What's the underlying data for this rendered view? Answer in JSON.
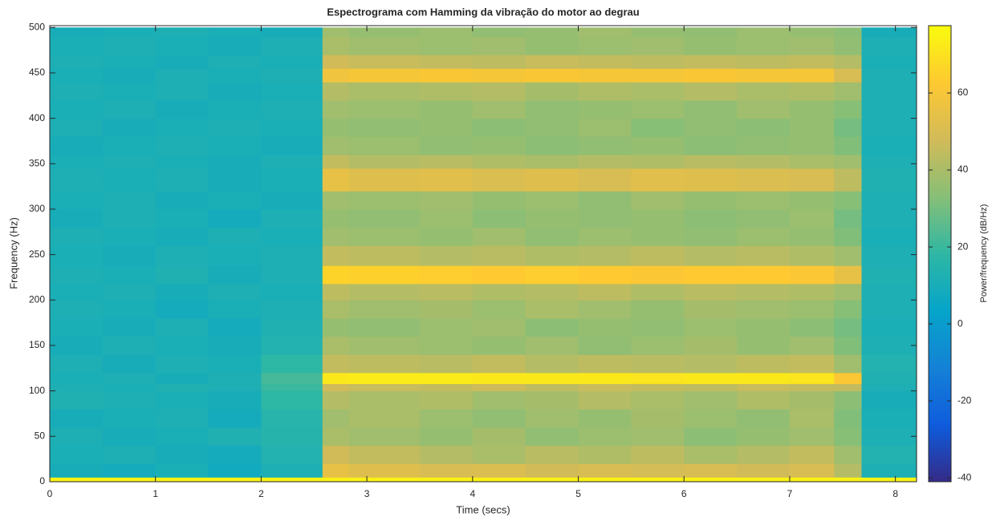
{
  "chart_data": {
    "type": "heatmap",
    "title": "Espectrograma com Hamming da vibração do motor ao degrau",
    "x_label": "Time (secs)",
    "y_label": "Frequency (Hz)",
    "colorbar_label": "Power/frequency (dB/Hz)",
    "x": [
      0,
      0.5,
      1,
      1.5,
      2,
      2.58,
      2.83,
      3.5,
      4,
      4.5,
      5,
      5.5,
      6,
      6.5,
      7,
      7.42,
      7.68,
      8.2
    ],
    "y": [
      0,
      5,
      20,
      40,
      60,
      80,
      100,
      108,
      120,
      140,
      160,
      180,
      200,
      218,
      238,
      260,
      280,
      300,
      320,
      345,
      360,
      380,
      400,
      420,
      440,
      455,
      470,
      490,
      500
    ],
    "z": [
      [
        75,
        75,
        75,
        75,
        75,
        75,
        75,
        75,
        75,
        75,
        75,
        75,
        75,
        75,
        75,
        75,
        75
      ],
      [
        10,
        9,
        11,
        8,
        12,
        55,
        52,
        50,
        51,
        48,
        50,
        49,
        50,
        48,
        50,
        42,
        12
      ],
      [
        11,
        12,
        10,
        9,
        14,
        48,
        45,
        42,
        40,
        43,
        41,
        44,
        40,
        42,
        45,
        38,
        14
      ],
      [
        12,
        10,
        11,
        13,
        15,
        40,
        38,
        36,
        39,
        35,
        37,
        38,
        34,
        36,
        38,
        33,
        12
      ],
      [
        10,
        11,
        12,
        9,
        16,
        38,
        40,
        37,
        35,
        38,
        36,
        39,
        37,
        35,
        40,
        32,
        11
      ],
      [
        13,
        12,
        11,
        10,
        18,
        42,
        40,
        41,
        38,
        39,
        42,
        40,
        38,
        41,
        39,
        34,
        10
      ],
      [
        12,
        11,
        13,
        12,
        20,
        48,
        46,
        45,
        47,
        44,
        46,
        45,
        44,
        46,
        45,
        45,
        12
      ],
      [
        11,
        12,
        10,
        12,
        22,
        72,
        73,
        73,
        72,
        72,
        72,
        71,
        72,
        72,
        71,
        62,
        13
      ],
      [
        12,
        10,
        12,
        11,
        18,
        45,
        44,
        43,
        45,
        42,
        44,
        43,
        42,
        44,
        45,
        38,
        14
      ],
      [
        10,
        12,
        11,
        10,
        14,
        40,
        38,
        37,
        36,
        38,
        35,
        37,
        39,
        36,
        38,
        32,
        12
      ],
      [
        11,
        10,
        12,
        9,
        13,
        36,
        35,
        37,
        38,
        34,
        36,
        35,
        37,
        36,
        34,
        30,
        11
      ],
      [
        12,
        11,
        9,
        11,
        12,
        40,
        38,
        39,
        37,
        40,
        38,
        36,
        39,
        38,
        37,
        33,
        12
      ],
      [
        11,
        12,
        10,
        12,
        11,
        44,
        42,
        43,
        41,
        42,
        44,
        41,
        43,
        42,
        41,
        38,
        12
      ],
      [
        12,
        11,
        13,
        10,
        12,
        66,
        65,
        64,
        63,
        64,
        63,
        62,
        63,
        63,
        62,
        55,
        13
      ],
      [
        11,
        10,
        12,
        11,
        12,
        45,
        44,
        42,
        43,
        41,
        42,
        44,
        42,
        43,
        41,
        38,
        12
      ],
      [
        12,
        11,
        10,
        12,
        11,
        38,
        37,
        36,
        38,
        35,
        37,
        36,
        35,
        37,
        36,
        32,
        11
      ],
      [
        10,
        12,
        11,
        9,
        12,
        36,
        35,
        37,
        34,
        36,
        35,
        36,
        34,
        35,
        37,
        30,
        12
      ],
      [
        11,
        12,
        10,
        11,
        10,
        38,
        37,
        38,
        36,
        37,
        35,
        38,
        36,
        37,
        36,
        33,
        12
      ],
      [
        12,
        11,
        12,
        10,
        11,
        55,
        52,
        53,
        51,
        52,
        50,
        53,
        52,
        51,
        50,
        44,
        13
      ],
      [
        11,
        12,
        11,
        10,
        12,
        45,
        42,
        43,
        41,
        40,
        42,
        41,
        43,
        42,
        40,
        38,
        12
      ],
      [
        10,
        11,
        12,
        11,
        10,
        38,
        37,
        35,
        36,
        34,
        35,
        36,
        34,
        35,
        36,
        32,
        11
      ],
      [
        12,
        10,
        11,
        12,
        11,
        36,
        35,
        36,
        34,
        35,
        37,
        33,
        35,
        34,
        36,
        30,
        12
      ],
      [
        11,
        12,
        10,
        11,
        12,
        38,
        37,
        36,
        38,
        35,
        36,
        37,
        35,
        38,
        36,
        33,
        12
      ],
      [
        12,
        11,
        12,
        10,
        11,
        42,
        40,
        41,
        42,
        39,
        41,
        40,
        42,
        40,
        41,
        38,
        12
      ],
      [
        11,
        10,
        12,
        11,
        12,
        58,
        60,
        61,
        60,
        61,
        60,
        60,
        61,
        60,
        60,
        50,
        12
      ],
      [
        12,
        11,
        10,
        12,
        11,
        48,
        46,
        45,
        44,
        46,
        45,
        44,
        45,
        44,
        45,
        42,
        11
      ],
      [
        11,
        12,
        11,
        10,
        12,
        40,
        38,
        37,
        38,
        36,
        37,
        38,
        36,
        37,
        38,
        35,
        12
      ],
      [
        10,
        11,
        12,
        11,
        10,
        38,
        36,
        37,
        35,
        36,
        38,
        36,
        35,
        37,
        36,
        34,
        10
      ]
    ],
    "xlim": [
      0,
      8.2
    ],
    "xticks": [
      0,
      1,
      2,
      3,
      4,
      5,
      6,
      7,
      8
    ],
    "ylim": [
      0,
      502
    ],
    "yticks": [
      0,
      50,
      100,
      150,
      200,
      250,
      300,
      350,
      400,
      450,
      500
    ],
    "clim": [
      -41,
      77.5
    ],
    "cticks": [
      -40,
      -20,
      0,
      20,
      40,
      60
    ],
    "colormap": [
      "#352a87",
      "#0f5cdd",
      "#1481d6",
      "#06a4ca",
      "#2eb7a4",
      "#87bf77",
      "#d1bb59",
      "#fec832",
      "#f9fb0e"
    ],
    "grid": false
  }
}
